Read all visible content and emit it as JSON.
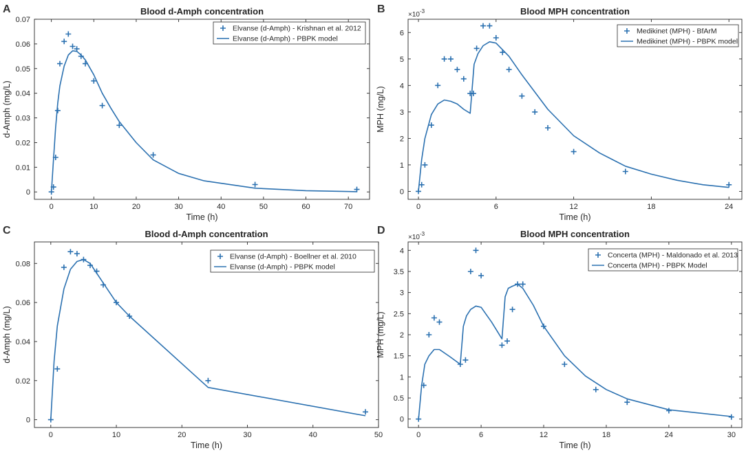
{
  "colors": {
    "series": "#2a70b0",
    "axis": "#262626",
    "text": "#262626"
  },
  "chart_data": [
    {
      "type": "scatter+line",
      "panel": "A",
      "title": "Blood d-Amph concentration",
      "xlabel": "Time (h)",
      "ylabel": "d-Amph (mg/L)",
      "xlim": [
        -4,
        75
      ],
      "ylim": [
        -0.003,
        0.07
      ],
      "xticks": [
        0,
        10,
        20,
        30,
        40,
        50,
        60,
        70
      ],
      "xtick_labels": [
        "0",
        "10",
        "20",
        "30",
        "40",
        "50",
        "60",
        "70"
      ],
      "yticks": [
        0,
        0.01,
        0.02,
        0.03,
        0.04,
        0.05,
        0.06,
        0.07
      ],
      "ytick_labels": [
        "0",
        "0.01",
        "0.02",
        "0.03",
        "0.04",
        "0.05",
        "0.06",
        "0.07"
      ],
      "exponent": "",
      "legend": [
        "Elvanse (d-Amph) - Krishnan et al. 2012",
        "Elvanse (d-Amph) - PBPK model"
      ],
      "legend_position": "top-right",
      "scatter": {
        "name": "Elvanse (d-Amph) - Krishnan et al. 2012",
        "x": [
          0,
          0.5,
          1,
          1.5,
          2,
          3,
          4,
          5,
          6,
          7,
          8,
          10,
          12,
          16,
          24,
          48,
          72
        ],
        "y": [
          0,
          0.002,
          0.014,
          0.033,
          0.052,
          0.061,
          0.064,
          0.059,
          0.058,
          0.055,
          0.052,
          0.045,
          0.035,
          0.027,
          0.015,
          0.003,
          0.001
        ]
      },
      "line": {
        "name": "Elvanse (d-Amph) - PBPK model",
        "x": [
          0,
          0.5,
          1,
          1.5,
          2,
          3,
          4,
          5,
          6,
          7,
          8,
          10,
          12,
          14,
          16,
          20,
          24,
          30,
          36,
          48,
          60,
          72
        ],
        "y": [
          0,
          0.013,
          0.026,
          0.036,
          0.043,
          0.051,
          0.0555,
          0.0572,
          0.057,
          0.0555,
          0.0535,
          0.0475,
          0.04,
          0.034,
          0.0285,
          0.02,
          0.013,
          0.0075,
          0.0045,
          0.0015,
          0.0005,
          0.0001
        ]
      }
    },
    {
      "type": "scatter+line",
      "panel": "B",
      "title": "Blood MPH concentration",
      "xlabel": "Time (h)",
      "ylabel": "MPH (mg/L)",
      "xlim": [
        -0.8,
        25
      ],
      "ylim": [
        -0.0003,
        0.0065
      ],
      "xticks": [
        0,
        6,
        12,
        18,
        24
      ],
      "xtick_labels": [
        "0",
        "6",
        "12",
        "18",
        "24"
      ],
      "yticks": [
        0,
        0.001,
        0.002,
        0.003,
        0.004,
        0.005,
        0.006
      ],
      "ytick_labels": [
        "0",
        "1",
        "2",
        "3",
        "4",
        "5",
        "6"
      ],
      "exponent": "×10",
      "exponent_power": "-3",
      "legend": [
        "Medikinet (MPH) - BfArM",
        "Medikinet (MPH) - PBPK model"
      ],
      "legend_position": "top-right",
      "scatter": {
        "name": "Medikinet (MPH) - BfArM",
        "x": [
          0,
          0.25,
          0.5,
          1,
          1.5,
          2,
          2.5,
          3,
          3.5,
          4,
          4.25,
          4.5,
          5,
          5.5,
          6,
          6.5,
          7,
          8,
          9,
          10,
          12,
          16,
          24
        ],
        "y": [
          0,
          0.00025,
          0.001,
          0.0025,
          0.004,
          0.005,
          0.005,
          0.0046,
          0.00425,
          0.0037,
          0.0037,
          0.0054,
          0.00625,
          0.00625,
          0.0058,
          0.00525,
          0.0046,
          0.0036,
          0.003,
          0.0024,
          0.0015,
          0.00075,
          0.00025
        ]
      },
      "line": {
        "name": "Medikinet (MPH) - PBPK model",
        "x": [
          0,
          0.25,
          0.5,
          1,
          1.5,
          2,
          2.5,
          3,
          3.5,
          4,
          4.3,
          4.6,
          5,
          5.5,
          6,
          7,
          8,
          10,
          12,
          14,
          16,
          18,
          20,
          22,
          24
        ],
        "y": [
          0,
          0.0012,
          0.002,
          0.0029,
          0.0033,
          0.00345,
          0.0034,
          0.0033,
          0.0031,
          0.00295,
          0.0048,
          0.0052,
          0.0055,
          0.00565,
          0.0056,
          0.0051,
          0.0044,
          0.0031,
          0.0021,
          0.00145,
          0.00095,
          0.00065,
          0.00042,
          0.00025,
          0.00015
        ]
      }
    },
    {
      "type": "scatter+line",
      "panel": "C",
      "title": "Blood d-Amph concentration",
      "xlabel": "Time (h)",
      "ylabel": "d-Amph (mg/L)",
      "xlim": [
        -2.5,
        50
      ],
      "ylim": [
        -0.004,
        0.091
      ],
      "xticks": [
        0,
        10,
        20,
        30,
        40,
        50
      ],
      "xtick_labels": [
        "0",
        "10",
        "20",
        "30",
        "40",
        "50"
      ],
      "yticks": [
        0,
        0.02,
        0.04,
        0.06,
        0.08
      ],
      "ytick_labels": [
        "0",
        "0.02",
        "0.04",
        "0.06",
        "0.08"
      ],
      "exponent": "",
      "legend": [
        "Elvanse (d-Amph) - Boellner et al. 2010",
        "Elvanse (d-Amph) - PBPK model"
      ],
      "legend_position": "top-right",
      "scatter": {
        "name": "Elvanse (d-Amph) - Boellner et al. 2010",
        "x": [
          0,
          1,
          2,
          3,
          4,
          5,
          6,
          7,
          8,
          10,
          12,
          24,
          48
        ],
        "y": [
          0,
          0.026,
          0.078,
          0.086,
          0.085,
          0.082,
          0.079,
          0.076,
          0.069,
          0.06,
          0.053,
          0.02,
          0.004
        ]
      },
      "line": {
        "name": "Elvanse (d-Amph) - PBPK model",
        "x": [
          0,
          0.5,
          1,
          2,
          3,
          4,
          5,
          6,
          7,
          8,
          10,
          12,
          24,
          48
        ],
        "y": [
          0,
          0.03,
          0.048,
          0.067,
          0.077,
          0.081,
          0.082,
          0.08,
          0.075,
          0.07,
          0.06,
          0.053,
          0.0165,
          0.002
        ]
      }
    },
    {
      "type": "scatter+line",
      "panel": "D",
      "title": "Blood MPH concentration",
      "xlabel": "Time (h)",
      "ylabel": "MPH (mg/L)",
      "xlim": [
        -1,
        31
      ],
      "ylim": [
        -0.0002,
        0.0042
      ],
      "xticks": [
        0,
        6,
        12,
        18,
        24,
        30
      ],
      "xtick_labels": [
        "0",
        "6",
        "12",
        "18",
        "24",
        "30"
      ],
      "yticks": [
        0,
        0.0005,
        0.001,
        0.0015,
        0.002,
        0.0025,
        0.003,
        0.0035,
        0.004
      ],
      "ytick_labels": [
        "0",
        "0.5",
        "1",
        "1.5",
        "2",
        "2.5",
        "3",
        "3.5",
        "4"
      ],
      "exponent": "×10",
      "exponent_power": "-3",
      "legend": [
        "Concerta (MPH) - Maldonado et al. 2013",
        "Concerta (MPH) - PBPK Model"
      ],
      "legend_position": "top-right",
      "scatter": {
        "name": "Concerta (MPH) - Maldonado et al. 2013",
        "x": [
          0,
          0.5,
          1,
          1.5,
          2,
          4,
          4.5,
          5,
          5.5,
          6,
          8,
          8.5,
          9,
          9.5,
          10,
          12,
          14,
          17,
          20,
          24,
          30
        ],
        "y": [
          0,
          0.0008,
          0.002,
          0.0024,
          0.0023,
          0.0013,
          0.0014,
          0.0035,
          0.004,
          0.0034,
          0.00175,
          0.00185,
          0.0026,
          0.0032,
          0.0032,
          0.0022,
          0.0013,
          0.0007,
          0.0004,
          0.0002,
          5e-05
        ]
      },
      "line": {
        "name": "Concerta (MPH) - PBPK Model",
        "x": [
          0,
          0.3,
          0.6,
          1,
          1.5,
          2,
          3,
          4,
          4.3,
          4.6,
          5,
          5.5,
          6,
          7,
          8,
          8.3,
          8.6,
          9,
          9.5,
          10,
          11,
          12,
          14,
          16,
          18,
          20,
          24,
          30
        ],
        "y": [
          0,
          0.0008,
          0.0013,
          0.0015,
          0.00165,
          0.00165,
          0.00148,
          0.0013,
          0.0022,
          0.00245,
          0.0026,
          0.00268,
          0.00265,
          0.0023,
          0.0019,
          0.0029,
          0.0031,
          0.00315,
          0.0032,
          0.0031,
          0.0027,
          0.0022,
          0.0015,
          0.00102,
          0.0007,
          0.00048,
          0.00022,
          6e-05
        ]
      }
    }
  ]
}
